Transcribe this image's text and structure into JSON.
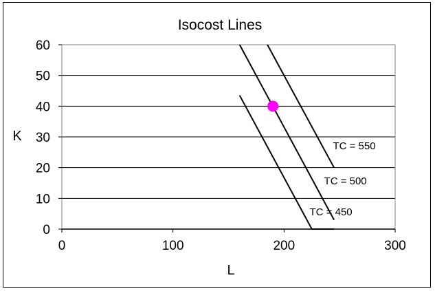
{
  "chart_data": {
    "type": "line",
    "title": "Isocost Lines",
    "xlabel": "L",
    "ylabel": "K",
    "xlim": [
      0,
      300
    ],
    "ylim": [
      0,
      60
    ],
    "x_ticks": [
      "0",
      "100",
      "200",
      "300"
    ],
    "y_ticks": [
      "0",
      "10",
      "20",
      "30",
      "40",
      "50",
      "60"
    ],
    "grid": {
      "horizontal": true,
      "vertical": false
    },
    "series": [
      {
        "name": "TC = 450",
        "color": "#000000",
        "points": [
          [
            160,
            43.5
          ],
          [
            225,
            0
          ],
          [
            245,
            0
          ]
        ]
      },
      {
        "name": "TC = 500",
        "color": "#000000",
        "points": [
          [
            160,
            60
          ],
          [
            245,
            3
          ]
        ]
      },
      {
        "name": "TC = 550",
        "color": "#000000",
        "points": [
          [
            185,
            60
          ],
          [
            245,
            20
          ]
        ]
      }
    ],
    "annotations": [
      {
        "text": "TC = 550",
        "x": 244,
        "y": 26
      },
      {
        "text": "TC = 500",
        "x": 236,
        "y": 14.5
      },
      {
        "text": "TC = 450",
        "x": 223,
        "y": 4.5
      }
    ],
    "highlight_point": {
      "x": 190,
      "y": 40,
      "color": "#ff00ff"
    }
  }
}
